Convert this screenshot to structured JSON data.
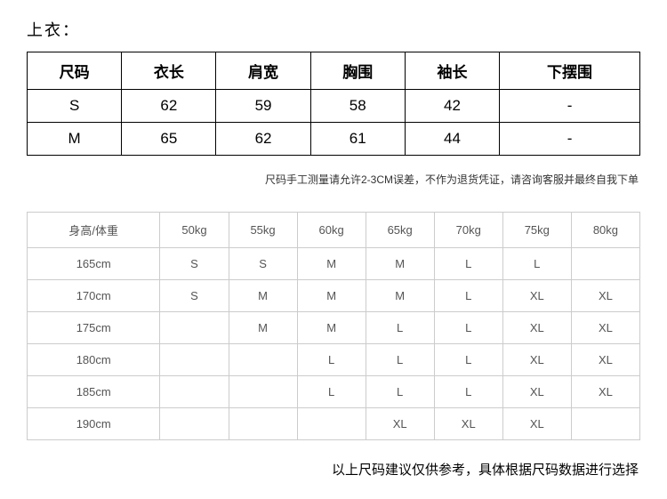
{
  "title": "上衣：",
  "size_table": {
    "type": "table",
    "border_color": "#000000",
    "header_fontsize": 17,
    "cell_fontsize": 17,
    "columns": [
      "尺码",
      "衣长",
      "肩宽",
      "胸围",
      "袖长",
      "下摆围"
    ],
    "rows": [
      [
        "S",
        "62",
        "59",
        "58",
        "42",
        "-"
      ],
      [
        "M",
        "65",
        "62",
        "61",
        "44",
        "-"
      ]
    ]
  },
  "note1": "尺码手工测量请允许2-3CM误差，不作为退货凭证，请咨询客服并最终自我下单",
  "fit_table": {
    "type": "table",
    "border_color": "#cccccc",
    "header_fontsize": 13,
    "cell_fontsize": 13,
    "text_color": "#555555",
    "columns": [
      "身高/体重",
      "50kg",
      "55kg",
      "60kg",
      "65kg",
      "70kg",
      "75kg",
      "80kg"
    ],
    "rows": [
      [
        "165cm",
        "S",
        "S",
        "M",
        "M",
        "L",
        "L",
        ""
      ],
      [
        "170cm",
        "S",
        "M",
        "M",
        "M",
        "L",
        "XL",
        "XL"
      ],
      [
        "175cm",
        "",
        "M",
        "M",
        "L",
        "L",
        "XL",
        "XL"
      ],
      [
        "180cm",
        "",
        "",
        "L",
        "L",
        "L",
        "XL",
        "XL"
      ],
      [
        "185cm",
        "",
        "",
        "L",
        "L",
        "L",
        "XL",
        "XL"
      ],
      [
        "190cm",
        "",
        "",
        "",
        "XL",
        "XL",
        "XL",
        ""
      ]
    ]
  },
  "note2": "以上尺码建议仅供参考，具体根据尺码数据进行选择"
}
